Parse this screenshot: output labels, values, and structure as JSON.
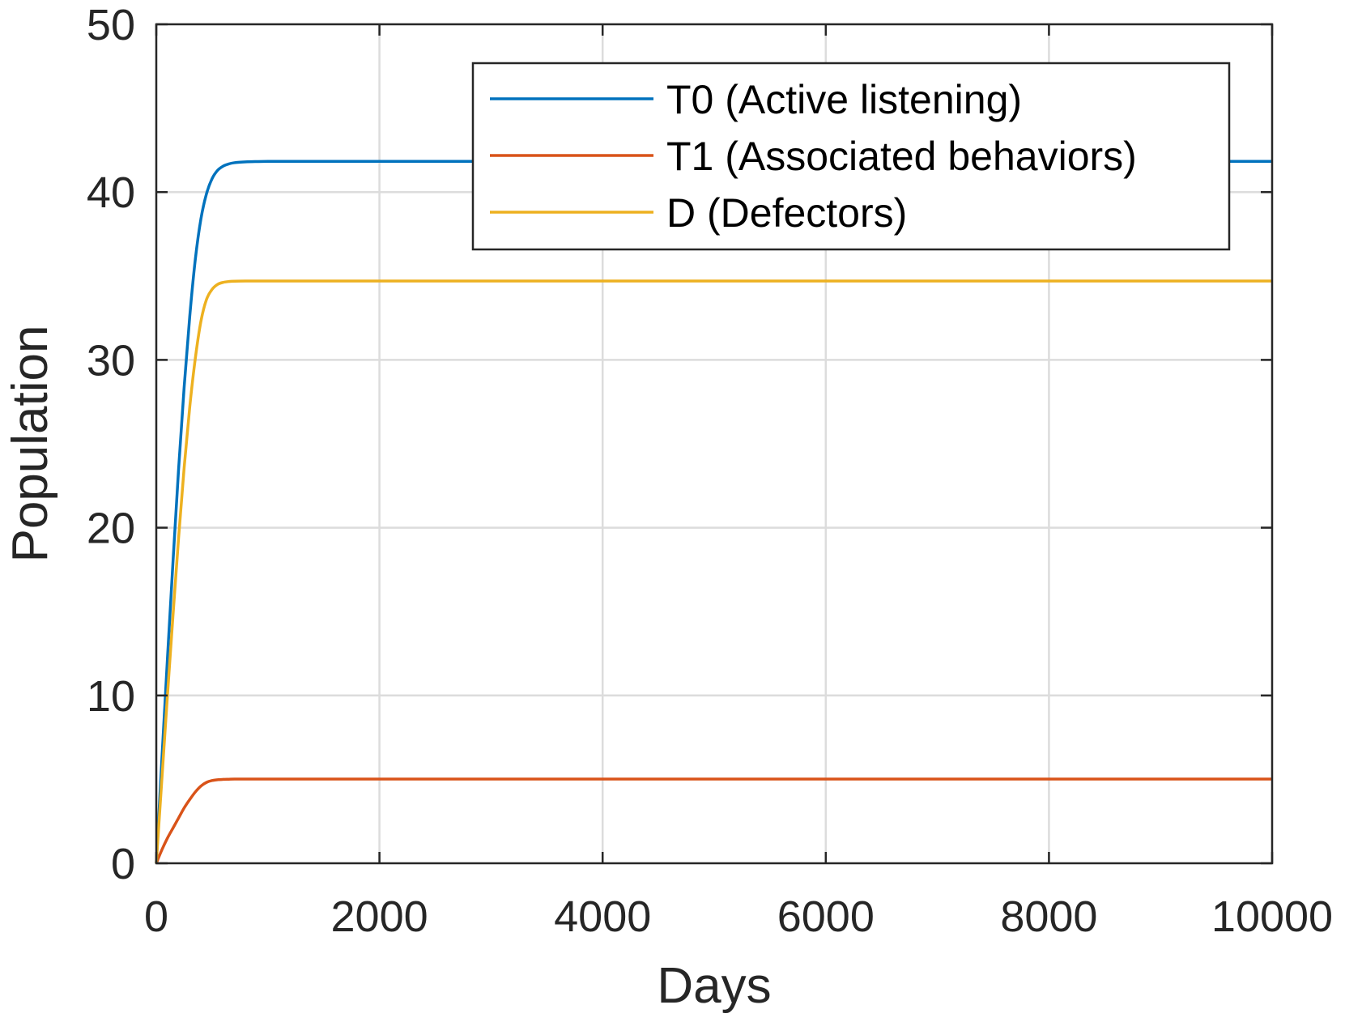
{
  "chart_data": {
    "type": "line",
    "title": "",
    "xlabel": "Days",
    "ylabel": "Population",
    "xlim": [
      0,
      10000
    ],
    "ylim": [
      0,
      50
    ],
    "xticks": [
      0,
      2000,
      4000,
      6000,
      8000,
      10000
    ],
    "yticks": [
      0,
      10,
      20,
      30,
      40,
      50
    ],
    "xtick_labels": [
      "0",
      "2000",
      "4000",
      "6000",
      "8000",
      "10000"
    ],
    "ytick_labels": [
      "0",
      "10",
      "20",
      "30",
      "40",
      "50"
    ],
    "grid": true,
    "legend_position": "top-right",
    "series": [
      {
        "name": "T0 (Active listening)",
        "color": "#0072bd",
        "x": [
          0,
          50,
          100,
          150,
          200,
          250,
          300,
          350,
          400,
          450,
          500,
          550,
          600,
          650,
          700,
          800,
          900,
          1000,
          1200,
          1500,
          2000,
          3000,
          4000,
          5000,
          6000,
          7000,
          8000,
          9000,
          10000
        ],
        "y": [
          0,
          6.2,
          12.2,
          18.0,
          23.5,
          28.4,
          32.6,
          36.0,
          38.4,
          39.9,
          40.8,
          41.3,
          41.55,
          41.68,
          41.75,
          41.8,
          41.82,
          41.83,
          41.83,
          41.83,
          41.83,
          41.83,
          41.83,
          41.83,
          41.83,
          41.83,
          41.83,
          41.83,
          41.83
        ]
      },
      {
        "name": "T1 (Associated behaviors)",
        "color": "#d95319",
        "x": [
          0,
          50,
          100,
          150,
          200,
          250,
          300,
          350,
          400,
          450,
          500,
          550,
          600,
          650,
          700,
          800,
          900,
          1000,
          1200,
          1500,
          2000,
          3000,
          4000,
          5000,
          6000,
          7000,
          8000,
          9000,
          10000
        ],
        "y": [
          0,
          0.8,
          1.5,
          2.1,
          2.7,
          3.3,
          3.8,
          4.25,
          4.6,
          4.82,
          4.93,
          4.98,
          5.0,
          5.01,
          5.02,
          5.02,
          5.02,
          5.02,
          5.02,
          5.02,
          5.02,
          5.02,
          5.02,
          5.02,
          5.02,
          5.02,
          5.02,
          5.02,
          5.02
        ]
      },
      {
        "name": "D (Defectors)",
        "color": "#edb120",
        "x": [
          0,
          50,
          100,
          150,
          200,
          250,
          300,
          350,
          400,
          450,
          500,
          550,
          600,
          650,
          700,
          800,
          900,
          1000,
          1200,
          1500,
          2000,
          3000,
          4000,
          5000,
          6000,
          7000,
          8000,
          9000,
          10000
        ],
        "y": [
          0,
          5.0,
          10.0,
          14.8,
          19.4,
          23.6,
          27.2,
          30.1,
          32.3,
          33.6,
          34.2,
          34.5,
          34.62,
          34.67,
          34.69,
          34.7,
          34.7,
          34.7,
          34.7,
          34.7,
          34.7,
          34.7,
          34.7,
          34.7,
          34.7,
          34.7,
          34.7,
          34.7,
          34.7
        ]
      }
    ]
  }
}
